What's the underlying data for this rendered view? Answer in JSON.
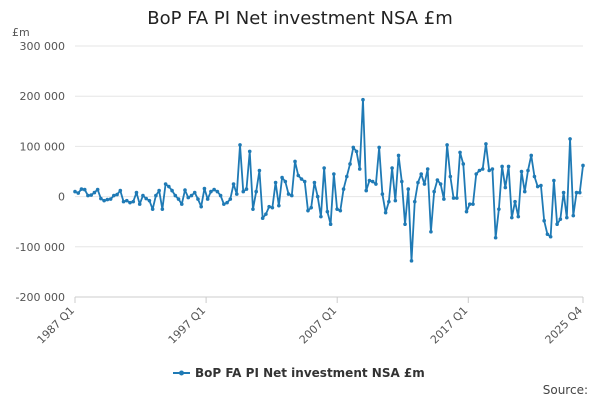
{
  "chart_data": {
    "type": "line",
    "title": "BoP FA PI Net investment NSA £m",
    "unit_label": "£m",
    "source_label": "Source:",
    "ylim": [
      -200000,
      300000
    ],
    "y_ticks": [
      {
        "value": 300000,
        "label": "300 000"
      },
      {
        "value": 200000,
        "label": "200 000"
      },
      {
        "value": 100000,
        "label": "100 000"
      },
      {
        "value": 0,
        "label": "0"
      },
      {
        "value": -100000,
        "label": "-100 000"
      },
      {
        "value": -200000,
        "label": "-200 000"
      }
    ],
    "x_ticks": [
      "1987 Q1",
      "1997 Q1",
      "2007 Q1",
      "2017 Q1",
      "2025 Q4"
    ],
    "x_start_label": "1987 Q1",
    "x_end_label": "2025 Q4",
    "grid": true,
    "legend_position": "bottom",
    "color": "#1f7ab5",
    "series": [
      {
        "name": "BoP FA PI Net investment NSA £m",
        "values": [
          10000,
          7000,
          15000,
          14000,
          2000,
          3000,
          8000,
          14000,
          -4000,
          -8000,
          -6000,
          -5000,
          2000,
          4000,
          12000,
          -10000,
          -8000,
          -12000,
          -10000,
          8000,
          -15000,
          2000,
          -4000,
          -8000,
          -25000,
          2000,
          12000,
          -25000,
          25000,
          20000,
          12000,
          2000,
          -5000,
          -15000,
          13000,
          -2000,
          2000,
          8000,
          -5000,
          -20000,
          16000,
          -5000,
          10000,
          14000,
          10000,
          2000,
          -15000,
          -12000,
          -5000,
          25000,
          5000,
          103000,
          10000,
          15000,
          90000,
          -25000,
          10000,
          52000,
          -43000,
          -35000,
          -20000,
          -22000,
          28000,
          -18000,
          38000,
          30000,
          5000,
          2000,
          70000,
          42000,
          35000,
          30000,
          -28000,
          -22000,
          28000,
          0,
          -40000,
          57000,
          -30000,
          -55000,
          45000,
          -25000,
          -28000,
          15000,
          40000,
          65000,
          98000,
          90000,
          55000,
          193000,
          12000,
          32000,
          30000,
          25000,
          98000,
          5000,
          -32000,
          -10000,
          57000,
          -8000,
          82000,
          30000,
          -55000,
          15000,
          -128000,
          -10000,
          28000,
          45000,
          25000,
          55000,
          -70000,
          10000,
          33000,
          25000,
          -5000,
          103000,
          40000,
          -3000,
          -3000,
          88000,
          65000,
          -30000,
          -15000,
          -15000,
          45000,
          52000,
          55000,
          105000,
          52000,
          55000,
          -82000,
          -25000,
          60000,
          18000,
          60000,
          -42000,
          -10000,
          -40000,
          50000,
          10000,
          52000,
          82000,
          40000,
          20000,
          22000,
          -48000,
          -75000,
          -80000,
          32000,
          -55000,
          -45000,
          8000,
          -42000,
          115000,
          -38000,
          8000,
          8000,
          62000
        ]
      }
    ]
  }
}
